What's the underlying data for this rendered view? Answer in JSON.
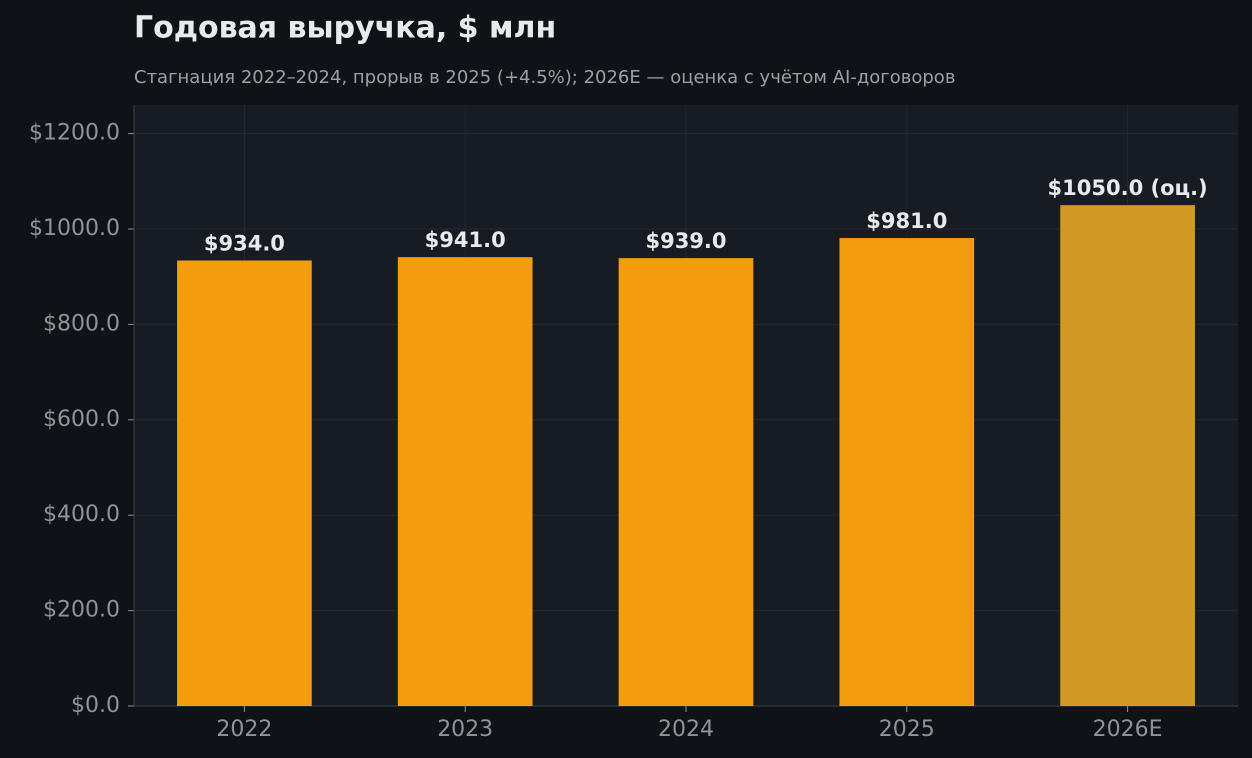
{
  "chart_data": {
    "type": "bar",
    "title": "Годовая выручка, $ млн",
    "subtitle": "Стагнация 2022–2024, прорыв в 2025 (+4.5%); 2026E — оценка с учётом AI-договоров",
    "categories": [
      "2022",
      "2023",
      "2024",
      "2025",
      "2026E"
    ],
    "values": [
      934,
      941,
      939,
      981,
      1050
    ],
    "value_labels": [
      "$934.0",
      "$941.0",
      "$939.0",
      "$981.0",
      "$1050.0 (оц.)"
    ],
    "colors": [
      "#f39c0f",
      "#f39c0f",
      "#f39c0f",
      "#f39c0f",
      "#d19a24"
    ],
    "ylim": [
      0,
      1260
    ],
    "yticks": [
      {
        "value": 0,
        "label": "$0.0"
      },
      {
        "value": 200,
        "label": "$200.0"
      },
      {
        "value": 400,
        "label": "$400.0"
      },
      {
        "value": 600,
        "label": "$600.0"
      },
      {
        "value": 800,
        "label": "$800.0"
      },
      {
        "value": 1000,
        "label": "$1000.0"
      },
      {
        "value": 1200,
        "label": "$1200.0"
      }
    ],
    "grid": true
  }
}
